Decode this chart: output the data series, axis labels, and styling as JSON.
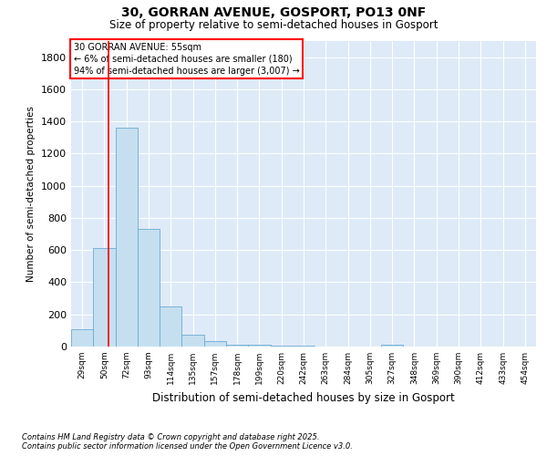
{
  "title1": "30, GORRAN AVENUE, GOSPORT, PO13 0NF",
  "title2": "Size of property relative to semi-detached houses in Gosport",
  "xlabel": "Distribution of semi-detached houses by size in Gosport",
  "ylabel": "Number of semi-detached properties",
  "categories": [
    "29sqm",
    "50sqm",
    "72sqm",
    "93sqm",
    "114sqm",
    "135sqm",
    "157sqm",
    "178sqm",
    "199sqm",
    "220sqm",
    "242sqm",
    "263sqm",
    "284sqm",
    "305sqm",
    "327sqm",
    "348sqm",
    "369sqm",
    "390sqm",
    "412sqm",
    "433sqm",
    "454sqm"
  ],
  "values": [
    110,
    610,
    1360,
    730,
    250,
    75,
    35,
    10,
    10,
    5,
    5,
    0,
    0,
    0,
    10,
    0,
    0,
    0,
    0,
    0,
    0
  ],
  "bar_color": "#c5dff0",
  "bar_edge_color": "#6aaad4",
  "ylim": [
    0,
    1900
  ],
  "yticks": [
    0,
    200,
    400,
    600,
    800,
    1000,
    1200,
    1400,
    1600,
    1800
  ],
  "red_line_x": 1.18,
  "annotation_text": "30 GORRAN AVENUE: 55sqm\n← 6% of semi-detached houses are smaller (180)\n94% of semi-detached houses are larger (3,007) →",
  "bg_color": "#deeaf7",
  "footer1": "Contains HM Land Registry data © Crown copyright and database right 2025.",
  "footer2": "Contains public sector information licensed under the Open Government Licence v3.0."
}
